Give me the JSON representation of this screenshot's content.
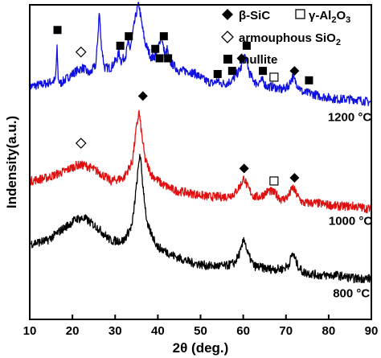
{
  "chart_data": {
    "type": "line",
    "title": "",
    "xlabel": "2θ (deg.)",
    "ylabel": "Indensity(a.u.)",
    "xlim": [
      10,
      90
    ],
    "xticks": [
      10,
      20,
      30,
      40,
      50,
      60,
      70,
      80,
      90
    ],
    "yticks": "none",
    "grid": false,
    "legend": {
      "placement": "top-right",
      "entries": [
        {
          "marker": "filled-diamond",
          "label": "β-SiC"
        },
        {
          "marker": "open-square",
          "label": "γ-Al2O3"
        },
        {
          "marker": "open-diamond",
          "label": "armouphous SiO2"
        },
        {
          "marker": "filled-square",
          "label": "mullite"
        }
      ]
    },
    "series": [
      {
        "name": "1200 °C",
        "color": "#1010e0",
        "x": [
          10,
          14,
          16.0,
          16.4,
          16.7,
          17.2,
          19,
          21,
          22.5,
          24,
          25.5,
          26.0,
          26.3,
          26.7,
          27.5,
          29,
          30.5,
          30.9,
          31.4,
          32.5,
          33.0,
          33.5,
          34.5,
          35.2,
          35.6,
          36.1,
          37,
          38.5,
          39.5,
          40.0,
          40.4,
          40.8,
          41.2,
          41.7,
          42.2,
          42.7,
          43.5,
          45,
          47,
          49,
          51,
          53,
          54.0,
          54.5,
          56,
          57.4,
          58,
          59.5,
          60.3,
          61.0,
          61.5,
          63,
          64.5,
          65.5,
          67,
          69,
          70.5,
          71.5,
          72.5,
          74,
          75.5,
          78,
          82,
          86,
          90
        ],
        "y": [
          0.74,
          0.75,
          0.76,
          0.86,
          0.76,
          0.75,
          0.77,
          0.79,
          0.8,
          0.78,
          0.81,
          0.91,
          0.98,
          0.88,
          0.8,
          0.8,
          0.83,
          0.85,
          0.82,
          0.84,
          0.88,
          0.86,
          0.94,
          0.99,
          1.0,
          0.95,
          0.88,
          0.83,
          0.84,
          0.86,
          0.88,
          0.91,
          0.87,
          0.84,
          0.86,
          0.82,
          0.81,
          0.79,
          0.79,
          0.78,
          0.76,
          0.75,
          0.76,
          0.75,
          0.75,
          0.76,
          0.77,
          0.8,
          0.84,
          0.81,
          0.78,
          0.75,
          0.76,
          0.74,
          0.74,
          0.73,
          0.74,
          0.77,
          0.75,
          0.72,
          0.72,
          0.71,
          0.7,
          0.7,
          0.69
        ]
      },
      {
        "name": "1000 °C",
        "color": "#e01010",
        "x": [
          10,
          14,
          18,
          21,
          23,
          26,
          29,
          32,
          34,
          35.0,
          35.6,
          36.2,
          37,
          38.5,
          41,
          44,
          48,
          52,
          56,
          58,
          59.5,
          60.2,
          61,
          62.5,
          64,
          66,
          67.5,
          69,
          70.5,
          71.6,
          72.8,
          74,
          77,
          82,
          86,
          90
        ],
        "y": [
          0.44,
          0.45,
          0.47,
          0.49,
          0.49,
          0.47,
          0.44,
          0.45,
          0.5,
          0.61,
          0.66,
          0.59,
          0.51,
          0.46,
          0.43,
          0.41,
          0.4,
          0.39,
          0.39,
          0.4,
          0.43,
          0.45,
          0.42,
          0.39,
          0.39,
          0.41,
          0.4,
          0.38,
          0.39,
          0.42,
          0.39,
          0.37,
          0.37,
          0.36,
          0.36,
          0.35
        ]
      },
      {
        "name": "800 °C",
        "color": "#000000",
        "x": [
          10,
          14,
          18,
          21,
          23,
          26,
          29,
          32,
          34,
          35.2,
          35.8,
          36.4,
          37.5,
          40,
          44,
          48,
          52,
          56,
          58,
          59.5,
          60.2,
          61,
          62.5,
          66,
          69,
          70.5,
          71.6,
          72.8,
          74,
          78,
          82,
          86,
          90
        ],
        "y": [
          0.24,
          0.25,
          0.29,
          0.32,
          0.32,
          0.29,
          0.25,
          0.25,
          0.3,
          0.45,
          0.53,
          0.44,
          0.3,
          0.23,
          0.2,
          0.18,
          0.17,
          0.17,
          0.18,
          0.22,
          0.26,
          0.21,
          0.17,
          0.16,
          0.16,
          0.17,
          0.21,
          0.17,
          0.15,
          0.14,
          0.14,
          0.13,
          0.13
        ]
      }
    ],
    "annotations": [
      {
        "marker": "filled-square",
        "x": 16.5,
        "y": 0.92
      },
      {
        "marker": "open-diamond",
        "x": 22.0,
        "y": 0.85
      },
      {
        "marker": "filled-square",
        "x": 26.4,
        "y": 1.04
      },
      {
        "marker": "filled-square",
        "x": 31.2,
        "y": 0.87
      },
      {
        "marker": "filled-square",
        "x": 33.2,
        "y": 0.9
      },
      {
        "marker": "filled-square",
        "x": 35.4,
        "y": 1.08
      },
      {
        "marker": "filled-diamond",
        "x": 37.2,
        "y": 1.05
      },
      {
        "marker": "filled-square",
        "x": 39.4,
        "y": 0.86
      },
      {
        "marker": "filled-square",
        "x": 40.4,
        "y": 0.83
      },
      {
        "marker": "filled-square",
        "x": 41.4,
        "y": 0.9
      },
      {
        "marker": "filled-square",
        "x": 42.4,
        "y": 0.83
      },
      {
        "marker": "filled-square",
        "x": 54.0,
        "y": 0.78
      },
      {
        "marker": "filled-square",
        "x": 57.4,
        "y": 0.79
      },
      {
        "marker": "filled-diamond",
        "x": 59.6,
        "y": 0.83
      },
      {
        "marker": "filled-square",
        "x": 60.8,
        "y": 0.87
      },
      {
        "marker": "filled-square",
        "x": 64.6,
        "y": 0.79
      },
      {
        "marker": "open-square",
        "x": 67.2,
        "y": 0.77
      },
      {
        "marker": "filled-diamond",
        "x": 72.0,
        "y": 0.79
      },
      {
        "marker": "filled-square",
        "x": 75.4,
        "y": 0.76
      },
      {
        "marker": "open-diamond",
        "x": 22.0,
        "y": 0.56
      },
      {
        "marker": "filled-diamond",
        "x": 36.5,
        "y": 0.71
      },
      {
        "marker": "filled-diamond",
        "x": 60.2,
        "y": 0.48
      },
      {
        "marker": "open-square",
        "x": 67.2,
        "y": 0.44
      },
      {
        "marker": "filled-diamond",
        "x": 72.0,
        "y": 0.45
      }
    ],
    "series_labels": [
      {
        "text": "1200 °C",
        "x": 79.8,
        "y": 0.63
      },
      {
        "text": "1000 °C",
        "x": 80.0,
        "y": 0.3
      },
      {
        "text": "800 °C",
        "x": 81.0,
        "y": 0.07
      }
    ]
  }
}
